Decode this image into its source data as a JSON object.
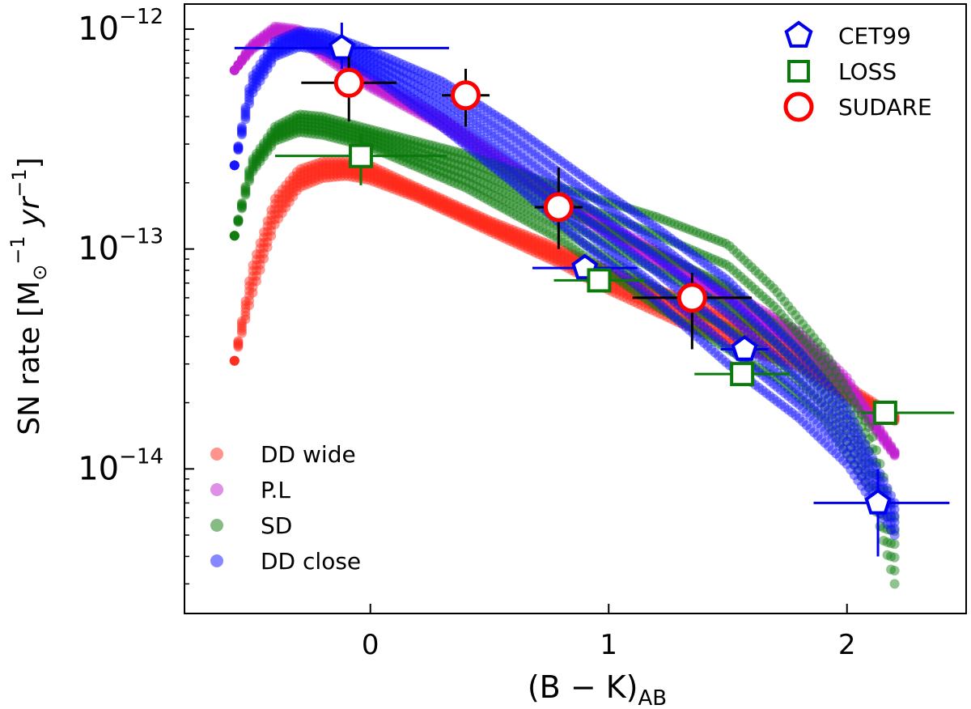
{
  "chart_data": {
    "type": "scatter",
    "title": "",
    "xlabel": "(B − K)",
    "xlabel_sub": "AB",
    "ylabel_pre": "SN rate [M",
    "ylabel_sub": "⊙",
    "ylabel_sup1": "−1",
    "ylabel_mid": " yr",
    "ylabel_sup2": "−1",
    "ylabel_post": "]",
    "xlim": [
      -0.78,
      2.5
    ],
    "ylim": [
      2.2e-15,
      1.3e-12
    ],
    "yscale": "log",
    "x_ticks": [
      {
        "value": 0,
        "label": "0"
      },
      {
        "value": 1,
        "label": "1"
      },
      {
        "value": 2,
        "label": "2"
      }
    ],
    "y_ticks": [
      {
        "value": 1e-12,
        "base": "10",
        "exp": "−12"
      },
      {
        "value": 1e-13,
        "base": "10",
        "exp": "−13"
      },
      {
        "value": 1e-14,
        "base": "10",
        "exp": "−14"
      }
    ],
    "model_series": [
      {
        "name": "DD wide",
        "color": "#ff2a1a",
        "upper": [
          [
            -0.57,
            3.1e-14
          ],
          [
            -0.5,
            8e-14
          ],
          [
            -0.4,
            1.7e-13
          ],
          [
            -0.3,
            2.3e-13
          ],
          [
            -0.2,
            2.5e-13
          ],
          [
            -0.1,
            2.5e-13
          ],
          [
            0.0,
            2.4e-13
          ],
          [
            0.2,
            1.9e-13
          ],
          [
            0.5,
            1.35e-13
          ],
          [
            0.8,
            1e-13
          ],
          [
            1.0,
            8e-14
          ],
          [
            1.3,
            6e-14
          ],
          [
            1.6,
            4.6e-14
          ],
          [
            1.8,
            3.7e-14
          ],
          [
            2.0,
            2.4e-14
          ],
          [
            2.2,
            1.75e-14
          ]
        ],
        "lower": [
          [
            -0.57,
            3.1e-14
          ],
          [
            -0.5,
            6e-14
          ],
          [
            -0.4,
            1.3e-13
          ],
          [
            -0.3,
            1.9e-13
          ],
          [
            -0.2,
            2.1e-13
          ],
          [
            -0.1,
            2.15e-13
          ],
          [
            0.0,
            2.05e-13
          ],
          [
            0.2,
            1.7e-13
          ],
          [
            0.5,
            1.2e-13
          ],
          [
            0.8,
            8.5e-14
          ],
          [
            1.0,
            6.5e-14
          ],
          [
            1.3,
            4.6e-14
          ],
          [
            1.6,
            3.4e-14
          ],
          [
            1.8,
            2.9e-14
          ],
          [
            2.0,
            2.1e-14
          ],
          [
            2.2,
            1.65e-14
          ]
        ]
      },
      {
        "name": "P.L",
        "color": "#c020d0",
        "upper": [
          [
            -0.57,
            6.5e-13
          ],
          [
            -0.5,
            8.5e-13
          ],
          [
            -0.4,
            1.03e-12
          ],
          [
            -0.3,
            1e-12
          ],
          [
            -0.2,
            8.5e-13
          ],
          [
            0.0,
            6e-13
          ],
          [
            0.3,
            4e-13
          ],
          [
            0.6,
            2.4e-13
          ],
          [
            1.0,
            1.3e-13
          ],
          [
            1.4,
            7.5e-14
          ],
          [
            1.8,
            4.2e-14
          ],
          [
            2.0,
            2.6e-14
          ],
          [
            2.2,
            1.2e-14
          ]
        ],
        "lower": [
          [
            -0.57,
            6.5e-13
          ],
          [
            -0.5,
            8e-13
          ],
          [
            -0.4,
            9.5e-13
          ],
          [
            -0.3,
            9e-13
          ],
          [
            -0.2,
            7.5e-13
          ],
          [
            0.0,
            5.4e-13
          ],
          [
            0.3,
            3.6e-13
          ],
          [
            0.6,
            2.15e-13
          ],
          [
            1.0,
            1.15e-13
          ],
          [
            1.4,
            6.5e-14
          ],
          [
            1.8,
            3.6e-14
          ],
          [
            2.0,
            2.2e-14
          ],
          [
            2.2,
            1.15e-14
          ]
        ]
      },
      {
        "name": "SD",
        "color": "#0a7a0a",
        "upper": [
          [
            -0.57,
            1.15e-13
          ],
          [
            -0.5,
            2.5e-13
          ],
          [
            -0.4,
            3.6e-13
          ],
          [
            -0.3,
            4.1e-13
          ],
          [
            -0.2,
            4e-13
          ],
          [
            0.0,
            3.5e-13
          ],
          [
            0.4,
            2.7e-13
          ],
          [
            0.8,
            1.9e-13
          ],
          [
            1.2,
            1.4e-13
          ],
          [
            1.5,
            1.05e-13
          ],
          [
            1.7,
            6.5e-14
          ],
          [
            1.9,
            3.5e-14
          ],
          [
            2.1,
            1.5e-14
          ],
          [
            2.2,
            6e-15
          ]
        ],
        "lower": [
          [
            -0.57,
            1.15e-13
          ],
          [
            -0.5,
            2.2e-13
          ],
          [
            -0.4,
            3.1e-13
          ],
          [
            -0.3,
            3.4e-13
          ],
          [
            -0.2,
            3.3e-13
          ],
          [
            0.0,
            2.9e-13
          ],
          [
            0.4,
            1.9e-13
          ],
          [
            0.8,
            1.1e-13
          ],
          [
            1.2,
            5.5e-14
          ],
          [
            1.5,
            3.5e-14
          ],
          [
            1.7,
            2.6e-14
          ],
          [
            1.9,
            1.7e-14
          ],
          [
            2.1,
            8e-15
          ],
          [
            2.2,
            3e-15
          ]
        ]
      },
      {
        "name": "DD close",
        "color": "#1010ff",
        "upper": [
          [
            -0.57,
            2.4e-13
          ],
          [
            -0.5,
            6e-13
          ],
          [
            -0.4,
            8.8e-13
          ],
          [
            -0.3,
            9.8e-13
          ],
          [
            -0.2,
            9.6e-13
          ],
          [
            0.0,
            8e-13
          ],
          [
            0.3,
            5.8e-13
          ],
          [
            0.6,
            3.6e-13
          ],
          [
            0.9,
            2.1e-13
          ],
          [
            1.2,
            1.25e-13
          ],
          [
            1.5,
            7.2e-14
          ],
          [
            1.8,
            3.4e-14
          ],
          [
            2.0,
            1.9e-14
          ],
          [
            2.2,
            7e-15
          ]
        ],
        "lower": [
          [
            -0.57,
            2.4e-13
          ],
          [
            -0.5,
            5e-13
          ],
          [
            -0.4,
            7.5e-13
          ],
          [
            -0.3,
            8.3e-13
          ],
          [
            -0.2,
            8e-13
          ],
          [
            0.0,
            6.2e-13
          ],
          [
            0.3,
            3.6e-13
          ],
          [
            0.6,
            2e-13
          ],
          [
            0.9,
            1.05e-13
          ],
          [
            1.2,
            5.8e-14
          ],
          [
            1.5,
            3e-14
          ],
          [
            1.8,
            1.7e-14
          ],
          [
            2.0,
            1.05e-14
          ],
          [
            2.2,
            5e-15
          ]
        ]
      }
    ],
    "observed_series": [
      {
        "name": "CET99",
        "marker": "pentagon",
        "color": "#0000ee",
        "points": [
          {
            "x": -0.12,
            "y": 8.2e-13,
            "xerr": [
              0.45,
              0.45
            ],
            "yerr": [
              1.6e-13,
              2.5e-13
            ]
          },
          {
            "x": 0.9,
            "y": 8.2e-14,
            "xerr": [
              0.22,
              0.22
            ],
            "yerr": [
              0,
              0
            ]
          },
          {
            "x": 1.57,
            "y": 3.5e-14,
            "xerr": [
              0.1,
              0.1
            ],
            "yerr": [
              0,
              0
            ]
          },
          {
            "x": 2.13,
            "y": 7e-15,
            "xerr": [
              0.27,
              0.3
            ],
            "yerr": [
              3e-15,
              3e-15
            ]
          }
        ]
      },
      {
        "name": "LOSS",
        "marker": "square",
        "color": "#0a7a0a",
        "points": [
          {
            "x": -0.04,
            "y": 2.65e-13,
            "xerr": [
              0.36,
              0.36
            ],
            "yerr": [
              7e-14,
              7e-14
            ]
          },
          {
            "x": 0.96,
            "y": 7.2e-14,
            "xerr": [
              0.19,
              0.19
            ],
            "yerr": [
              0,
              0
            ]
          },
          {
            "x": 1.56,
            "y": 2.7e-14,
            "xerr": [
              0.2,
              0.2
            ],
            "yerr": [
              0,
              0
            ]
          },
          {
            "x": 2.16,
            "y": 1.8e-14,
            "xerr": [
              0.1,
              0.29
            ],
            "yerr": [
              0,
              0
            ]
          }
        ]
      },
      {
        "name": "SUDARE",
        "marker": "circle",
        "color": "#ff0000",
        "points": [
          {
            "x": -0.09,
            "y": 5.7e-13,
            "xerr": [
              0.2,
              0.2
            ],
            "yerr": [
              1.9e-13,
              1.8e-13
            ]
          },
          {
            "x": 0.4,
            "y": 5e-13,
            "xerr": [
              0.1,
              0.1
            ],
            "yerr": [
              1.4e-13,
              1.6e-13
            ]
          },
          {
            "x": 0.79,
            "y": 1.55e-13,
            "xerr": [
              0.1,
              0.1
            ],
            "yerr": [
              5.5e-14,
              8e-14
            ]
          },
          {
            "x": 1.35,
            "y": 6e-14,
            "xerr": [
              0.25,
              0.25
            ],
            "yerr": [
              2.5e-14,
              1.8e-14
            ]
          }
        ]
      }
    ],
    "legend_upper": {
      "placement": "top-right",
      "entries": [
        "CET99",
        "LOSS",
        "SUDARE"
      ]
    },
    "legend_lower": {
      "placement": "bottom-left",
      "entries": [
        "DD wide",
        "P.L",
        "SD",
        "DD close"
      ]
    }
  }
}
